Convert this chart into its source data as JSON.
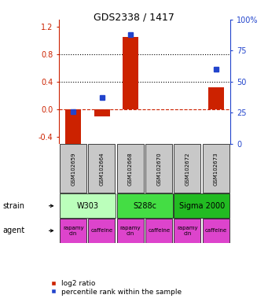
{
  "title": "GDS2338 / 1417",
  "samples": [
    "GSM102659",
    "GSM102664",
    "GSM102668",
    "GSM102670",
    "GSM102672",
    "GSM102673"
  ],
  "log2_ratio": [
    -0.52,
    -0.1,
    1.05,
    0.0,
    0.0,
    0.32
  ],
  "percentile_rank": [
    26,
    37,
    88,
    0,
    0,
    60
  ],
  "ylim_left": [
    -0.5,
    1.3
  ],
  "ylim_right": [
    0,
    100
  ],
  "yticks_left": [
    -0.4,
    0.0,
    0.4,
    0.8,
    1.2
  ],
  "yticks_right": [
    0,
    25,
    50,
    75,
    100
  ],
  "hlines": [
    0.4,
    0.8
  ],
  "bar_color": "#cc2200",
  "dot_color": "#2244cc",
  "zero_line_color": "#cc2200",
  "strains": [
    {
      "label": "W303",
      "cols": [
        0,
        1
      ],
      "color": "#bbffbb"
    },
    {
      "label": "S288c",
      "cols": [
        2,
        3
      ],
      "color": "#44dd44"
    },
    {
      "label": "Sigma 2000",
      "cols": [
        4,
        5
      ],
      "color": "#22bb22"
    }
  ],
  "agents": [
    {
      "label": "rapamycin",
      "col": 0,
      "color": "#dd44cc"
    },
    {
      "label": "caffeine",
      "col": 1,
      "color": "#dd44cc"
    },
    {
      "label": "rapamycin",
      "col": 2,
      "color": "#dd44cc"
    },
    {
      "label": "caffeine",
      "col": 3,
      "color": "#dd44cc"
    },
    {
      "label": "rapamycin",
      "col": 4,
      "color": "#dd44cc"
    },
    {
      "label": "caffeine",
      "col": 5,
      "color": "#dd44cc"
    }
  ],
  "legend_red_label": "log2 ratio",
  "legend_blue_label": "percentile rank within the sample",
  "sample_box_color": "#c8c8c8",
  "background_color": "#ffffff"
}
